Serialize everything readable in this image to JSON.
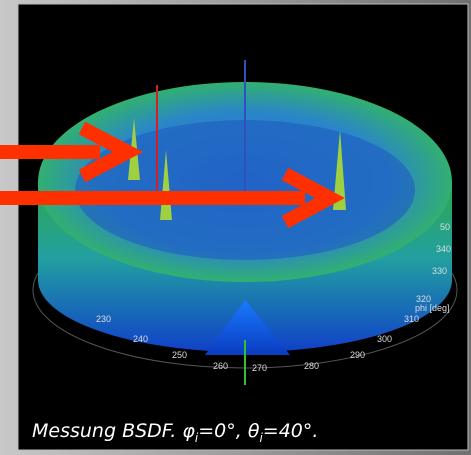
{
  "plot": {
    "phi_ticks": [
      "50",
      "340",
      "330",
      "320",
      "310",
      "300",
      "290",
      "280",
      "270",
      "260",
      "250",
      "240",
      "230"
    ],
    "axis_label": "phi [deg]"
  },
  "caption": {
    "text": "Messung BSDF. φ",
    "sub1": "i",
    "mid": "=0°, θ",
    "sub2": "i",
    "end": "=40°."
  }
}
